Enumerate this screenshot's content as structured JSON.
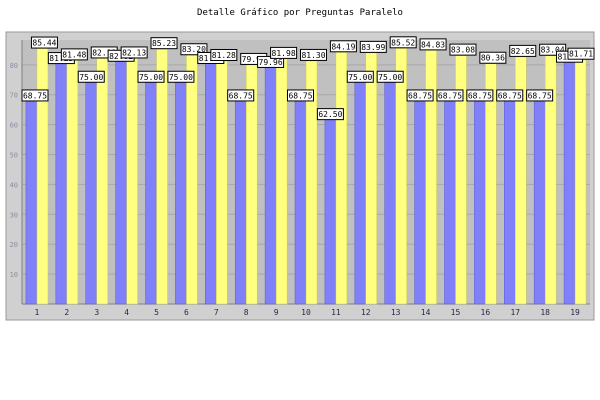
{
  "chart_data": {
    "type": "bar",
    "title": "Detalle Gráfico por Preguntas Paralelo",
    "xlabel": "",
    "ylabel": "",
    "ylim": [
      0,
      88.3
    ],
    "yticks": [
      10,
      20,
      30,
      40,
      50,
      60,
      70,
      80
    ],
    "grid": true,
    "categories": [
      "1",
      "2",
      "3",
      "4",
      "5",
      "6",
      "7",
      "8",
      "9",
      "10",
      "11",
      "12",
      "13",
      "14",
      "15",
      "16",
      "17",
      "18",
      "19"
    ],
    "series": [
      {
        "values": [
          68.75,
          81.25,
          75.0,
          82.02,
          75.0,
          75.0,
          81.28,
          68.75,
          79.96,
          68.75,
          62.5,
          75.0,
          75.0,
          68.75,
          68.75,
          68.75,
          68.75,
          68.75,
          81.71
        ],
        "labels": [
          "68.75",
          "81.25",
          "75.00",
          "82.02",
          "75.00",
          "75.00",
          "81.28",
          "68.75",
          "79.96",
          "68.75",
          "62.50",
          "75.00",
          "75.00",
          "68.75",
          "68.75",
          "68.75",
          "68.75",
          "68.75",
          "81.71"
        ],
        "color": "#8080f8"
      },
      {
        "values": [
          85.44,
          81.48,
          82.13,
          82.13,
          85.23,
          83.2,
          81.28,
          79.96,
          81.98,
          81.3,
          84.19,
          83.99,
          85.52,
          84.83,
          83.08,
          80.36,
          82.65,
          83.04,
          81.71
        ],
        "labels": [
          "85.44",
          "81.48",
          "82.13",
          "82.13",
          "85.23",
          "83.20",
          "81.28",
          "79.96",
          "81.98",
          "81.30",
          "84.19",
          "83.99",
          "85.52",
          "84.83",
          "83.08",
          "80.36",
          "82.65",
          "83.04",
          "81.71"
        ],
        "color": "#ffff80"
      }
    ],
    "colors": {
      "plot_bg": "#c0c0c0",
      "frame_bg": "#d0d0d0",
      "grid": "#a8a8a8",
      "bar_a": "#8080f8",
      "bar_b": "#ffff80",
      "tick_text": "#1f2a44",
      "ytick_text": "#8a8fa0"
    }
  }
}
